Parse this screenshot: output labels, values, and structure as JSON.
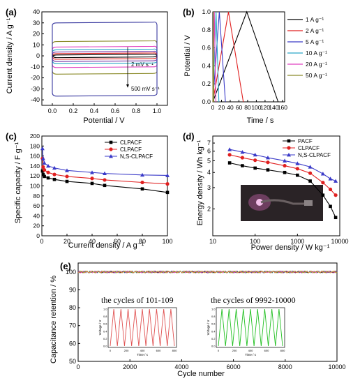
{
  "chart_data": [
    {
      "panel": "(a)",
      "type": "line",
      "xlabel": "Potential / V",
      "ylabel": "Current density / A g⁻¹",
      "xlim": [
        -0.1,
        1.1
      ],
      "ylim": [
        -45,
        40
      ],
      "xticks": [
        "0.0",
        "0.2",
        "0.4",
        "0.6",
        "0.8",
        "1.0"
      ],
      "yticks": [
        "-40",
        "-30",
        "-20",
        "-10",
        "0",
        "10",
        "20",
        "30",
        "40"
      ],
      "annotations": [
        "2 mV s⁻¹",
        "500 mV s⁻¹"
      ],
      "series": [
        {
          "color": "#8b8b2a",
          "top": 13.0,
          "bottom": -16.0
        },
        {
          "color": "#e040c0",
          "top": 8.0,
          "bottom": -10.0
        },
        {
          "color": "#2aa7c8",
          "top": 5.5,
          "bottom": -6.5
        },
        {
          "color": "#7a3aa8",
          "top": 3.5,
          "bottom": -4.5
        },
        {
          "color": "#e02020",
          "top": 2.0,
          "bottom": -2.5
        },
        {
          "color": "#000000",
          "top": 0.8,
          "bottom": -1.0
        },
        {
          "color": "#3a3aa0",
          "top": 30.0,
          "bottom": -36.0
        }
      ]
    },
    {
      "panel": "(b)",
      "type": "line",
      "xlabel": "Time / s",
      "ylabel": "Potential / V",
      "xlim": [
        0,
        165
      ],
      "ylim": [
        0,
        1.0
      ],
      "xticks": [
        "0",
        "20",
        "40",
        "60",
        "80",
        "100",
        "120",
        "140",
        "160"
      ],
      "yticks": [
        "0.0",
        "0.2",
        "0.4",
        "0.6",
        "0.8",
        "1.0"
      ],
      "series": [
        {
          "name": "1 A g⁻¹",
          "color": "#000000",
          "peak": 78,
          "end": 150
        },
        {
          "name": "2 A g⁻¹",
          "color": "#e02020",
          "peak": 36,
          "end": 70
        },
        {
          "name": "5 A g⁻¹",
          "color": "#3a3ac8",
          "peak": 15,
          "end": 29
        },
        {
          "name": "10 A g⁻¹",
          "color": "#2aa7c8",
          "peak": 7.5,
          "end": 14
        },
        {
          "name": "20 A g⁻¹",
          "color": "#e040c0",
          "peak": 3.5,
          "end": 7
        },
        {
          "name": "50 A g⁻¹",
          "color": "#8b8b2a",
          "peak": 1.2,
          "end": 2.4
        }
      ]
    },
    {
      "panel": "(c)",
      "type": "line",
      "xlabel": "Current density / A g⁻¹",
      "ylabel": "Specific capacity / F g⁻¹",
      "xlim": [
        0,
        100
      ],
      "ylim": [
        0,
        200
      ],
      "xticks": [
        "0",
        "20",
        "40",
        "60",
        "80",
        "100"
      ],
      "yticks": [
        "0",
        "20",
        "40",
        "60",
        "80",
        "100",
        "120",
        "140",
        "160",
        "180",
        "200"
      ],
      "legend": "top-right",
      "x": [
        0.5,
        1,
        2,
        5,
        10,
        20,
        40,
        50,
        80,
        100
      ],
      "series": [
        {
          "name": "CLPACF",
          "color": "#000000",
          "marker": "square",
          "values": [
            130,
            123,
            119,
            116,
            113,
            109,
            105,
            101,
            94,
            87
          ]
        },
        {
          "name": "CLPACF",
          "color": "#e02020",
          "marker": "circle",
          "values": [
            155,
            138,
            132,
            127,
            123,
            119,
            115,
            112,
            107,
            104
          ]
        },
        {
          "name": "N,S-CLPACF",
          "color": "#3a3ac8",
          "marker": "triangle",
          "values": [
            175,
            155,
            146,
            140,
            136,
            131,
            127,
            125,
            122,
            121
          ]
        }
      ]
    },
    {
      "panel": "(d)",
      "type": "line",
      "xlabel": "Power density / W kg⁻¹",
      "ylabel": "Energy density / Wh kg⁻¹",
      "xscale": "log",
      "yscale": "log",
      "xlim": [
        10,
        10000
      ],
      "ylim": [
        1.2,
        8
      ],
      "xticks": [
        "10",
        "100",
        "1000",
        "10000"
      ],
      "yticks": [
        "2",
        "3",
        "4",
        "5",
        "6",
        "7"
      ],
      "legend": "top-right",
      "x": [
        25,
        50,
        100,
        200,
        500,
        1000,
        2000,
        4000,
        6000,
        8000
      ],
      "series": [
        {
          "name": "PACF",
          "color": "#000000",
          "marker": "square",
          "values": [
            4.8,
            4.55,
            4.35,
            4.2,
            4.0,
            3.8,
            3.4,
            2.6,
            2.1,
            1.7
          ]
        },
        {
          "name": "CLPACF",
          "color": "#e02020",
          "marker": "circle",
          "values": [
            5.6,
            5.3,
            5.05,
            4.85,
            4.55,
            4.3,
            3.95,
            3.3,
            2.9,
            2.6
          ]
        },
        {
          "name": "N,S-CLPACF",
          "color": "#3a3ac8",
          "marker": "triangle",
          "values": [
            6.2,
            5.9,
            5.6,
            5.3,
            5.0,
            4.75,
            4.45,
            3.9,
            3.55,
            3.4
          ]
        }
      ],
      "inset": "photo of glowing LED"
    },
    {
      "panel": "(e)",
      "type": "line",
      "xlabel": "Cycle number",
      "ylabel": "Capacitance retention / %",
      "xlim": [
        0,
        10000
      ],
      "ylim": [
        50,
        105
      ],
      "xticks": [
        "0",
        "2000",
        "4000",
        "6000",
        "8000",
        "10000"
      ],
      "yticks": [
        "50",
        "60",
        "70",
        "80",
        "90",
        "100"
      ],
      "retention": 100,
      "annotations": [
        "the cycles of 101-109",
        "the cycles of 9992-10000"
      ],
      "insets": [
        {
          "color": "#e05050",
          "xlabel": "Time / s",
          "ylabel": "Voltage / V",
          "xticks": [
            "0",
            "200",
            "400",
            "600",
            "800"
          ],
          "yticks": [
            "0.0",
            "0.2",
            "0.4",
            "0.6",
            "0.8",
            "1.0"
          ],
          "cycles": 9
        },
        {
          "color": "#20c020",
          "xlabel": "Time / s",
          "ylabel": "Voltage / V",
          "xticks": [
            "0",
            "200",
            "400",
            "600",
            "800"
          ],
          "yticks": [
            "0.0",
            "0.2",
            "0.4",
            "0.6",
            "0.8",
            "1.0"
          ],
          "cycles": 9
        }
      ]
    }
  ]
}
